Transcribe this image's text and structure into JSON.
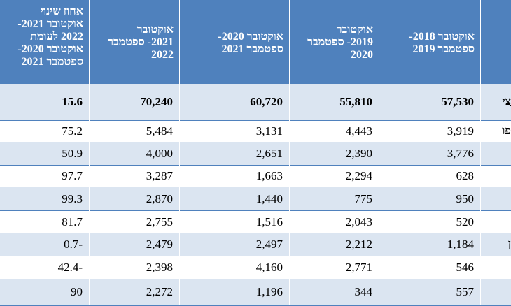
{
  "header": {
    "col_change_lines": [
      "אחוז שינוי",
      "אוקטובר 2021-",
      "2022 לעומת",
      "אוקטובר 2020-",
      "ספטמבר 2021"
    ],
    "col_2021_2022": [
      "אוקטובר",
      "2021- ספטמבר",
      "2022"
    ],
    "col_2020_2021": [
      "אוקטובר 2020-",
      "ספטמבר 2021"
    ],
    "col_2019_2020": [
      "אוקטובר",
      "2019- ספטמבר",
      "2020"
    ],
    "col_2018_2019": [
      "אוקטובר 2018-",
      "ספטמבר 2019"
    ]
  },
  "rows": [
    {
      "stub": "ַצי",
      "change": "15.6",
      "v2122": "70,240",
      "v2021": "60,720",
      "v1920": "55,810",
      "v1819": "57,530"
    },
    {
      "stub": "פו",
      "change": "75.2",
      "v2122": "5,484",
      "v2021": "3,131",
      "v1920": "4,443",
      "v1819": "3,919"
    },
    {
      "stub": "",
      "change": "50.9",
      "v2122": "4,000",
      "v2021": "2,651",
      "v1920": "2,390",
      "v1819": "3,776"
    },
    {
      "stub": "",
      "change": "97.7",
      "v2122": "3,287",
      "v2021": "1,663",
      "v1920": "2,294",
      "v1819": "628"
    },
    {
      "stub": "",
      "change": "99.3",
      "v2122": "2,870",
      "v2021": "1,440",
      "v1920": "775",
      "v1819": "950"
    },
    {
      "stub": "",
      "change": "81.7",
      "v2122": "2,755",
      "v2021": "1,516",
      "v1920": "2,043",
      "v1819": "520"
    },
    {
      "stub": "ן",
      "change": "0.7-",
      "v2122": "2,479",
      "v2021": "2,497",
      "v1920": "2,212",
      "v1819": "1,184"
    },
    {
      "stub": "",
      "change": "42.4-",
      "v2122": "2,398",
      "v2021": "4,160",
      "v1920": "2,771",
      "v1819": "546"
    },
    {
      "stub": "",
      "change": "90",
      "v2122": "2,272",
      "v2021": "1,196",
      "v1920": "344",
      "v1819": "557"
    }
  ]
}
